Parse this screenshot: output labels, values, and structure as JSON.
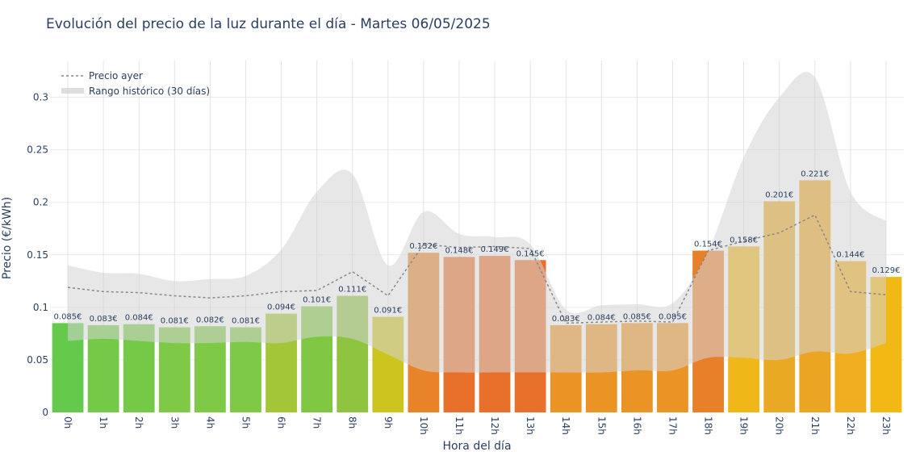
{
  "chart_data": {
    "type": "bar",
    "title": "Evolución del precio de la luz durante el día - Martes 06/05/2025",
    "xlabel": "Hora del día",
    "ylabel": "Precio (€/kWh)",
    "ylim": [
      0,
      0.335
    ],
    "yticks": [
      0,
      0.05,
      0.1,
      0.15,
      0.2,
      0.25,
      0.3
    ],
    "ytick_labels": [
      "0",
      "0.05",
      "0.1",
      "0.15",
      "0.2",
      "0.25",
      "0.3"
    ],
    "grid": true,
    "legend_position": "top-left",
    "categories": [
      "0h",
      "1h",
      "2h",
      "3h",
      "4h",
      "5h",
      "6h",
      "7h",
      "8h",
      "9h",
      "10h",
      "11h",
      "12h",
      "13h",
      "14h",
      "15h",
      "16h",
      "17h",
      "18h",
      "19h",
      "20h",
      "21h",
      "22h",
      "23h"
    ],
    "series": [
      {
        "name": "Precio hoy",
        "type": "bar",
        "values": [
          0.085,
          0.083,
          0.084,
          0.081,
          0.082,
          0.081,
          0.094,
          0.101,
          0.111,
          0.091,
          0.152,
          0.148,
          0.149,
          0.145,
          0.083,
          0.084,
          0.085,
          0.085,
          0.154,
          0.158,
          0.201,
          0.221,
          0.144,
          0.129
        ],
        "labels": [
          "0.085€",
          "0.083€",
          "0.084€",
          "0.081€",
          "0.082€",
          "0.081€",
          "0.094€",
          "0.101€",
          "0.111€",
          "0.091€",
          "0.152€",
          "0.148€",
          "0.149€",
          "0.145€",
          "0.083€",
          "0.084€",
          "0.085€",
          "0.085€",
          "0.154€",
          "0.158€",
          "0.201€",
          "0.221€",
          "0.144€",
          "0.129€"
        ],
        "colors": [
          "#65c94b",
          "#74c948",
          "#76c947",
          "#7ec945",
          "#7ec945",
          "#7ec945",
          "#a2c637",
          "#80c843",
          "#8ec440",
          "#ccc51f",
          "#e8832a",
          "#e8702a",
          "#e8702a",
          "#e8702a",
          "#eb9426",
          "#eb9426",
          "#eb9426",
          "#eb9426",
          "#e8802a",
          "#f0b718",
          "#e9a925",
          "#eca522",
          "#f0ad1e",
          "#f2b915"
        ]
      },
      {
        "name": "Precio ayer",
        "type": "line",
        "values": [
          0.119,
          0.115,
          0.114,
          0.111,
          0.109,
          0.111,
          0.115,
          0.116,
          0.134,
          0.111,
          0.16,
          0.157,
          0.158,
          0.156,
          0.085,
          0.086,
          0.087,
          0.086,
          0.154,
          0.163,
          0.171,
          0.188,
          0.115,
          0.112
        ]
      },
      {
        "name": "Rango histórico (30 días)",
        "type": "area",
        "upper": [
          0.14,
          0.133,
          0.132,
          0.125,
          0.127,
          0.13,
          0.155,
          0.21,
          0.227,
          0.14,
          0.191,
          0.17,
          0.167,
          0.16,
          0.098,
          0.102,
          0.103,
          0.104,
          0.154,
          0.243,
          0.3,
          0.319,
          0.21,
          0.182
        ],
        "lower": [
          0.068,
          0.07,
          0.068,
          0.066,
          0.066,
          0.067,
          0.066,
          0.072,
          0.07,
          0.055,
          0.04,
          0.038,
          0.038,
          0.038,
          0.038,
          0.038,
          0.04,
          0.04,
          0.052,
          0.052,
          0.05,
          0.058,
          0.056,
          0.066
        ]
      }
    ]
  }
}
